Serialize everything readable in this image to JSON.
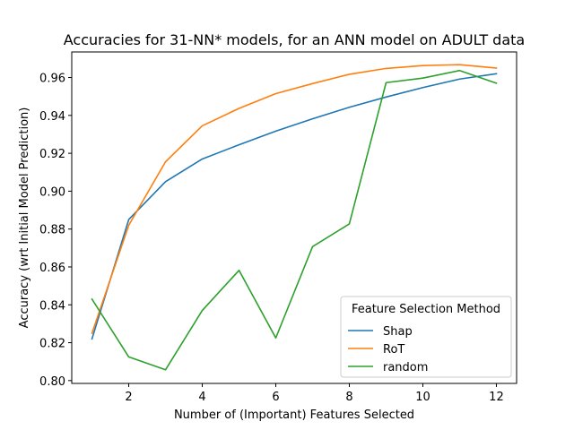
{
  "chart_data": {
    "type": "line",
    "title": "Accuracies for 31-NN* models, for an ANN model on ADULT data",
    "xlabel": "Number of (Important) Features Selected",
    "ylabel": "Accuracy (wrt Initial Model Prediction)",
    "xlim": [
      0.45,
      12.55
    ],
    "ylim": [
      0.7985,
      0.9735
    ],
    "xticks": [
      2,
      4,
      6,
      8,
      10,
      12
    ],
    "xtick_labels": [
      "2",
      "4",
      "6",
      "8",
      "10",
      "12"
    ],
    "yticks": [
      0.8,
      0.82,
      0.84,
      0.86,
      0.88,
      0.9,
      0.92,
      0.94,
      0.96
    ],
    "ytick_labels": [
      "0.80",
      "0.82",
      "0.84",
      "0.86",
      "0.88",
      "0.90",
      "0.92",
      "0.94",
      "0.96"
    ],
    "grid": false,
    "legend": {
      "title": "Feature Selection Method",
      "placement": "bottom-right"
    },
    "x": [
      1,
      2,
      3,
      4,
      5,
      6,
      7,
      8,
      9,
      10,
      11,
      12
    ],
    "series": [
      {
        "name": "Shap",
        "color": "#1f77b4",
        "values": [
          0.822,
          0.885,
          0.905,
          0.917,
          0.9245,
          0.9317,
          0.9382,
          0.9443,
          0.9497,
          0.9547,
          0.9592,
          0.962
        ]
      },
      {
        "name": "RoT",
        "color": "#ff7f0e",
        "values": [
          0.825,
          0.882,
          0.9155,
          0.9345,
          0.9437,
          0.9515,
          0.9568,
          0.9617,
          0.9648,
          0.9663,
          0.9668,
          0.965
        ]
      },
      {
        "name": "random",
        "color": "#2ca02c",
        "values": [
          0.843,
          0.8125,
          0.8057,
          0.837,
          0.8582,
          0.8225,
          0.8707,
          0.8827,
          0.9573,
          0.9597,
          0.9637,
          0.957
        ]
      }
    ]
  }
}
